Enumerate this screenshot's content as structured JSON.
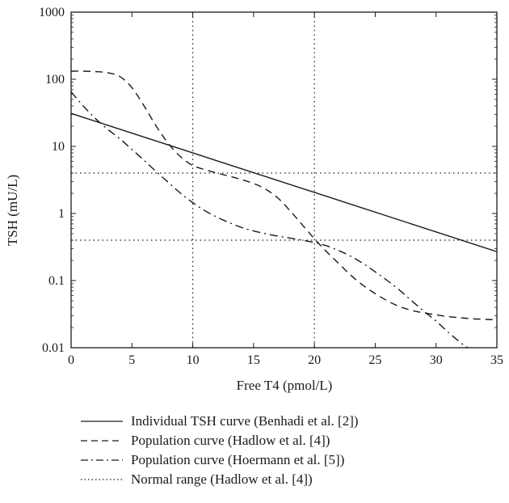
{
  "chart_data": {
    "type": "line",
    "title": "",
    "xlabel": "Free T4 (pmol/L)",
    "ylabel": "TSH (mU/L)",
    "xlim": [
      0,
      35
    ],
    "ylim": [
      0.01,
      1000
    ],
    "yscale": "log",
    "grid": false,
    "legend_position": "bottom",
    "x_ticks": [
      0,
      5,
      10,
      15,
      20,
      25,
      30,
      35
    ],
    "x_tick_labels": [
      "0",
      "5",
      "10",
      "15",
      "20",
      "25",
      "30",
      "35"
    ],
    "y_ticks": [
      0.01,
      0.1,
      1,
      10,
      100,
      1000
    ],
    "y_tick_labels": [
      "0.01",
      "0.1",
      "1",
      "10",
      "100",
      "1000"
    ],
    "series": [
      {
        "name": "Individual TSH curve (Benhadi et al. [2])",
        "style": "solid",
        "color": "#1a1a1a",
        "x": [
          0,
          35
        ],
        "y": [
          31,
          0.27
        ]
      },
      {
        "name": "Population curve (Hadlow et al. [4])",
        "style": "dashed",
        "color": "#1a1a1a",
        "x": [
          0,
          1,
          2,
          3,
          4,
          5,
          6,
          7,
          8,
          9,
          10,
          11,
          12,
          13,
          14,
          15,
          16,
          17,
          18,
          19,
          20,
          21,
          22,
          23,
          24,
          25,
          26,
          27,
          28,
          29,
          30,
          31,
          32,
          33,
          34,
          35
        ],
        "y": [
          132,
          132,
          130,
          125,
          110,
          75,
          40,
          20,
          11,
          7,
          5.2,
          4.5,
          4,
          3.6,
          3.2,
          2.8,
          2.3,
          1.7,
          1.1,
          0.68,
          0.42,
          0.27,
          0.18,
          0.12,
          0.085,
          0.064,
          0.05,
          0.041,
          0.036,
          0.033,
          0.031,
          0.029,
          0.028,
          0.027,
          0.0265,
          0.026
        ]
      },
      {
        "name": "Population curve (Hoermann et al. [5])",
        "style": "dashdot",
        "color": "#1a1a1a",
        "x": [
          0,
          1,
          2,
          3,
          4,
          5,
          6,
          7,
          8,
          9,
          10,
          11,
          12,
          13,
          14,
          15,
          16,
          17,
          18,
          19,
          20,
          21,
          22,
          23,
          24,
          25,
          26,
          27,
          28,
          29,
          30,
          31,
          32,
          32.6
        ],
        "y": [
          65,
          40,
          26,
          18,
          13,
          9,
          6.2,
          4.2,
          2.9,
          2,
          1.45,
          1.1,
          0.88,
          0.73,
          0.62,
          0.55,
          0.5,
          0.46,
          0.43,
          0.4,
          0.37,
          0.33,
          0.28,
          0.23,
          0.18,
          0.135,
          0.1,
          0.072,
          0.05,
          0.035,
          0.025,
          0.017,
          0.012,
          0.01
        ]
      }
    ],
    "normal_range": {
      "name": "Normal range (Hadlow et al. [4])",
      "style": "dotted",
      "color": "#1a1a1a",
      "ft4_bounds": [
        10,
        20
      ],
      "tsh_bounds": [
        0.4,
        4
      ]
    }
  }
}
